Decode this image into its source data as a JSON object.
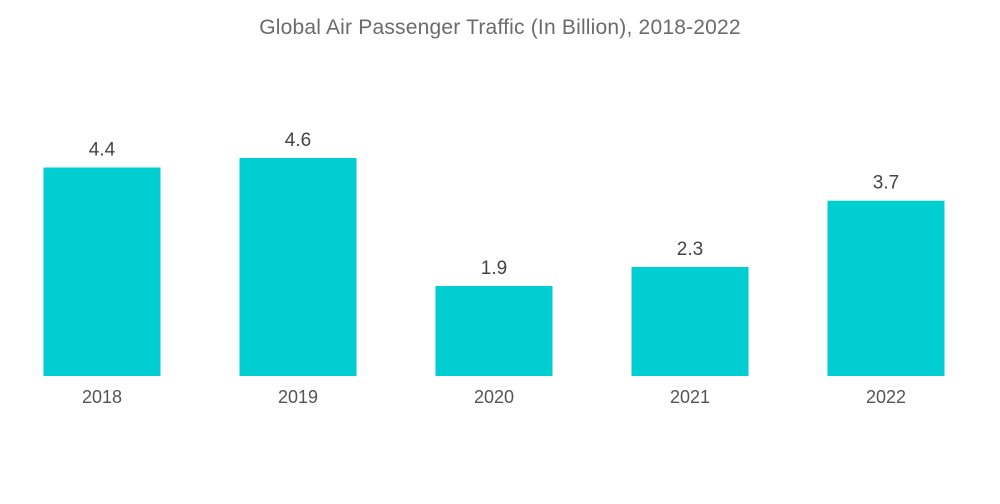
{
  "chart_data": {
    "type": "bar",
    "title": "Global Air Passenger Traffic (In Billion), 2018-2022",
    "categories": [
      "2018",
      "2019",
      "2020",
      "2021",
      "2022"
    ],
    "values": [
      4.4,
      4.6,
      1.9,
      2.3,
      3.7
    ],
    "value_labels": [
      "4.4",
      "4.6",
      "1.9",
      "2.3",
      "3.7"
    ],
    "xlabel": "",
    "ylabel": "",
    "ylim": [
      0,
      4.6
    ],
    "grid": false,
    "legend": "none",
    "bar_color": "#00CED1"
  }
}
